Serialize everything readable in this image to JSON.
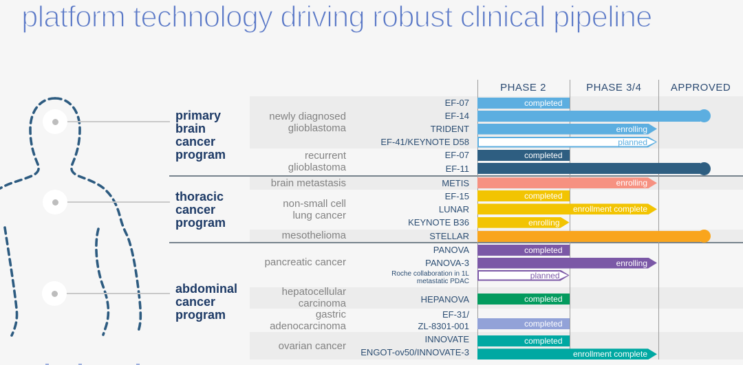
{
  "title": "platform technology driving robust clinical pipeline",
  "columns": [
    "PHASE 2",
    "PHASE 3/4",
    "APPROVED"
  ],
  "colors": {
    "light-blue": "#5caee0",
    "steel-blue": "#2e5e81",
    "salmon": "#f69181",
    "yellow": "#f2c402",
    "orange": "#f9a51d",
    "purple": "#7b58a6",
    "green": "#039b5e",
    "periwinkle": "#92a2d8",
    "teal": "#00a8a2"
  },
  "programs": [
    {
      "name": "primary\nbrain\ncancer\nprogram"
    },
    {
      "name": "thoracic\ncancer\nprogram"
    },
    {
      "name": "abdominal\ncancer\nprogram"
    }
  ],
  "chart_data": {
    "type": "timeline",
    "title": "platform technology driving robust clinical pipeline",
    "phases": [
      "PHASE 2",
      "PHASE 3/4",
      "APPROVED"
    ],
    "groups": [
      {
        "program": "primary brain cancer program",
        "disease": "newly diagnosed\nglioblastoma",
        "shaded": true,
        "trials": [
          {
            "name": "EF-07",
            "color": "light-blue",
            "status": "completed",
            "extent": "phase2",
            "cap": "flat"
          },
          {
            "name": "EF-14",
            "color": "light-blue",
            "status": "approved",
            "extent": "approved",
            "cap": "circle"
          },
          {
            "name": "TRIDENT",
            "color": "light-blue",
            "status": "enrolling",
            "extent": "phase34",
            "cap": "arrow"
          },
          {
            "name": "EF-41/KEYNOTE D58",
            "color": "light-blue",
            "status": "planned",
            "extent": "phase34",
            "cap": "arrow-outline"
          }
        ]
      },
      {
        "program": "primary brain cancer program",
        "disease": "recurrent\nglioblastoma",
        "shaded": false,
        "trials": [
          {
            "name": "EF-07",
            "color": "steel-blue",
            "status": "completed",
            "extent": "phase2",
            "cap": "flat"
          },
          {
            "name": "EF-11",
            "color": "steel-blue",
            "status": "approved",
            "extent": "approved",
            "cap": "circle"
          }
        ]
      },
      {
        "program": "thoracic cancer program",
        "disease": "brain metastasis",
        "shaded": true,
        "trials": [
          {
            "name": "METIS",
            "color": "salmon",
            "status": "enrolling",
            "extent": "phase34",
            "cap": "arrow"
          }
        ]
      },
      {
        "program": "thoracic cancer program",
        "disease": "non-small cell\nlung cancer",
        "shaded": false,
        "trials": [
          {
            "name": "EF-15",
            "color": "yellow",
            "status": "completed",
            "extent": "phase2",
            "cap": "flat"
          },
          {
            "name": "LUNAR",
            "color": "yellow",
            "status": "enrollment complete",
            "extent": "phase34",
            "cap": "arrow"
          },
          {
            "name": "KEYNOTE B36",
            "color": "yellow",
            "status": "enrolling",
            "extent": "phase2",
            "cap": "arrow"
          }
        ]
      },
      {
        "program": "thoracic cancer program",
        "disease": "mesothelioma",
        "shaded": true,
        "trials": [
          {
            "name": "STELLAR",
            "color": "orange",
            "status": "approved",
            "extent": "approved",
            "cap": "circle"
          }
        ]
      },
      {
        "program": "abdominal cancer program",
        "disease": "pancreatic cancer",
        "shaded": false,
        "trials": [
          {
            "name": "PANOVA",
            "color": "purple",
            "status": "completed",
            "extent": "phase2",
            "cap": "flat"
          },
          {
            "name": "PANOVA-3",
            "color": "purple",
            "status": "enrolling",
            "extent": "phase34",
            "cap": "arrow"
          },
          {
            "name": "Roche collaboration in 1L\nmetastatic PDAC",
            "color": "purple",
            "status": "planned",
            "extent": "phase2",
            "cap": "arrow-outline",
            "small_label": true
          }
        ]
      },
      {
        "program": "abdominal cancer program",
        "disease": "hepatocellular\ncarcinoma",
        "shaded": true,
        "trials": [
          {
            "name": "HEPANOVA",
            "color": "green",
            "status": "completed",
            "extent": "phase2",
            "cap": "flat"
          }
        ]
      },
      {
        "program": "abdominal cancer program",
        "disease": "gastric\nadenocarcinoma",
        "shaded": false,
        "trials": [
          {
            "name": "EF-31/\nZL-8301-001",
            "color": "periwinkle",
            "status": "completed",
            "extent": "phase2",
            "cap": "flat"
          }
        ]
      },
      {
        "program": "abdominal cancer program",
        "disease": "ovarian cancer",
        "shaded": true,
        "trials": [
          {
            "name": "INNOVATE",
            "color": "teal",
            "status": "completed",
            "extent": "phase2",
            "cap": "flat"
          },
          {
            "name": "ENGOT-ov50/INNOVATE-3",
            "color": "teal",
            "status": "enrollment complete",
            "extent": "phase34",
            "cap": "arrow"
          }
        ]
      }
    ]
  }
}
